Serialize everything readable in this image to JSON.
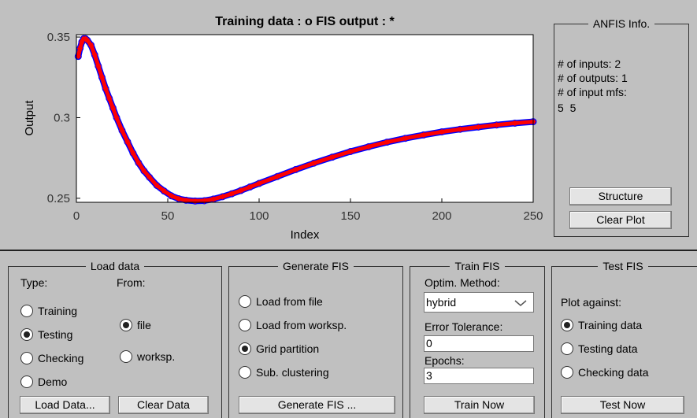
{
  "chart_data": {
    "type": "scatter",
    "title": "Training data : o    FIS output : *",
    "xlabel": "Index",
    "ylabel": "Output",
    "x": [
      1,
      2,
      3,
      4,
      5,
      6,
      8,
      10,
      12,
      14,
      16,
      18,
      20,
      22,
      25,
      28,
      31,
      34,
      37,
      40,
      44,
      48,
      52,
      56,
      60,
      65,
      70,
      75,
      80,
      85,
      90,
      95,
      100,
      110,
      120,
      130,
      140,
      150,
      160,
      170,
      180,
      190,
      200,
      210,
      220,
      230,
      240,
      250
    ],
    "series": [
      {
        "color": "#0000ff",
        "marker": "circle",
        "values": [
          0.338,
          0.343,
          0.347,
          0.349,
          0.349,
          0.348,
          0.345,
          0.339,
          0.332,
          0.325,
          0.318,
          0.312,
          0.306,
          0.3,
          0.292,
          0.285,
          0.278,
          0.272,
          0.267,
          0.263,
          0.258,
          0.2545,
          0.2515,
          0.2497,
          0.2488,
          0.2483,
          0.2485,
          0.2495,
          0.251,
          0.2528,
          0.2548,
          0.257,
          0.2592,
          0.2635,
          0.2678,
          0.2718,
          0.2755,
          0.279,
          0.282,
          0.2848,
          0.2872,
          0.2893,
          0.2912,
          0.2928,
          0.2942,
          0.2955,
          0.2966,
          0.2975
        ]
      },
      {
        "color": "#ff0000",
        "marker": "star",
        "values": [
          0.338,
          0.343,
          0.347,
          0.349,
          0.349,
          0.348,
          0.345,
          0.339,
          0.332,
          0.325,
          0.318,
          0.312,
          0.306,
          0.3,
          0.292,
          0.285,
          0.278,
          0.272,
          0.267,
          0.263,
          0.258,
          0.2545,
          0.2515,
          0.2497,
          0.2488,
          0.2483,
          0.2485,
          0.2495,
          0.251,
          0.2528,
          0.2548,
          0.257,
          0.2592,
          0.2635,
          0.2678,
          0.2718,
          0.2755,
          0.279,
          0.282,
          0.2848,
          0.2872,
          0.2893,
          0.2912,
          0.2928,
          0.2942,
          0.2955,
          0.2966,
          0.2975
        ]
      }
    ],
    "xlim": [
      0,
      250
    ],
    "xticks": [
      0,
      50,
      100,
      150,
      200,
      250
    ],
    "ylim": [
      0.2475,
      0.3515
    ],
    "yticks": [
      0.25,
      0.3,
      0.35
    ]
  },
  "panels": {
    "anfis_info": {
      "title": "ANFIS Info.",
      "lines": [
        "# of inputs: 2",
        "# of outputs: 1",
        "# of input mfs:",
        "5  5"
      ],
      "buttons": [
        "Structure",
        "Clear Plot"
      ]
    },
    "load_data": {
      "title": "Load data",
      "type_label": "Type:",
      "from_label": "From:",
      "type_options": [
        {
          "label": "Training",
          "checked": false
        },
        {
          "label": "Testing",
          "checked": true
        },
        {
          "label": "Checking",
          "checked": false
        },
        {
          "label": "Demo",
          "checked": false
        }
      ],
      "from_options": [
        {
          "label": "file",
          "checked": true
        },
        {
          "label": "worksp.",
          "checked": false
        }
      ],
      "buttons": [
        "Load Data...",
        "Clear Data"
      ]
    },
    "generate_fis": {
      "title": "Generate FIS",
      "options": [
        {
          "label": "Load from file",
          "checked": false
        },
        {
          "label": "Load from worksp.",
          "checked": false
        },
        {
          "label": "Grid partition",
          "checked": true
        },
        {
          "label": "Sub. clustering",
          "checked": false
        }
      ],
      "button": "Generate FIS ..."
    },
    "train_fis": {
      "title": "Train FIS",
      "method_label": "Optim. Method:",
      "method": "hybrid",
      "tolerance_label": "Error Tolerance:",
      "tolerance": 0,
      "epochs_label": "Epochs:",
      "epochs": 3,
      "button": "Train Now"
    },
    "test_fis": {
      "title": "Test FIS",
      "plot_label": "Plot against:",
      "options": [
        {
          "label": "Training data",
          "checked": true
        },
        {
          "label": "Testing data",
          "checked": false
        },
        {
          "label": "Checking data",
          "checked": false
        }
      ],
      "button": "Test Now"
    }
  }
}
